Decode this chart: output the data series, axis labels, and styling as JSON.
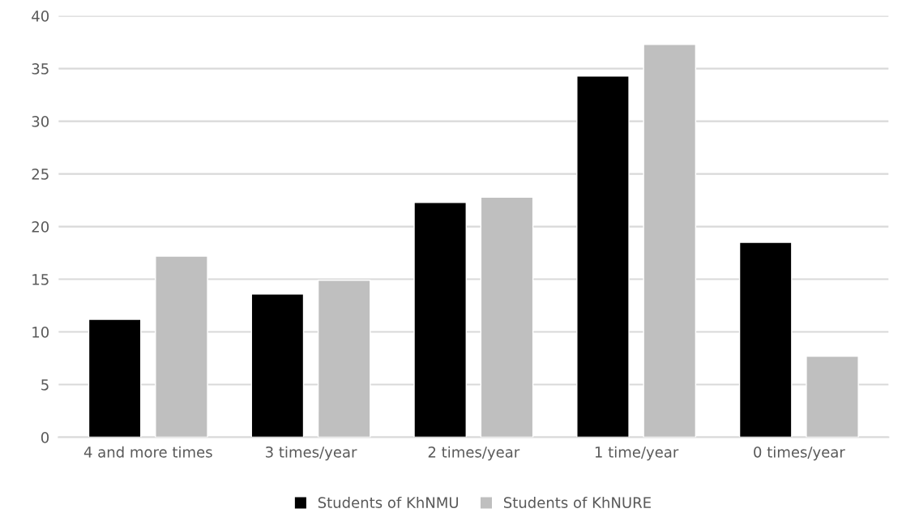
{
  "chart_data": {
    "type": "bar",
    "categories": [
      "4 and more times",
      "3 times/year",
      "2 times/year",
      "1 time/year",
      "0 times/year"
    ],
    "series": [
      {
        "name": "Students of KhNMU",
        "color": "#000000",
        "values": [
          11.2,
          13.6,
          22.3,
          34.3,
          18.5
        ]
      },
      {
        "name": "Students of KhNURE",
        "color": "#bfbfbf",
        "values": [
          17.2,
          14.9,
          22.8,
          37.3,
          7.7
        ]
      }
    ],
    "ylim": [
      0,
      40
    ],
    "yticks": [
      0,
      5,
      10,
      15,
      20,
      25,
      30,
      35,
      40
    ],
    "grid": "y",
    "legend": "bottom"
  }
}
